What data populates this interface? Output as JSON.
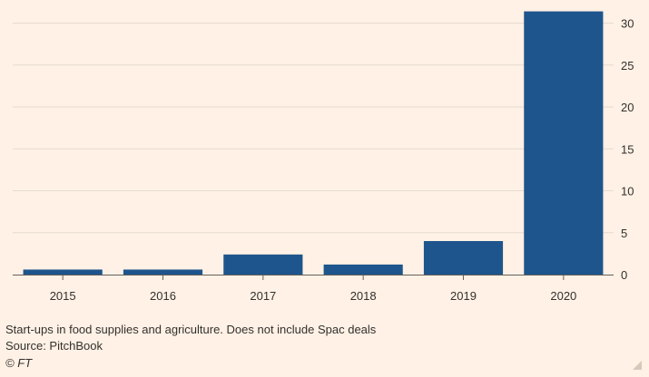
{
  "chart_data": {
    "type": "bar",
    "categories": [
      "2015",
      "2016",
      "2017",
      "2018",
      "2019",
      "2020"
    ],
    "values": [
      0.6,
      0.6,
      2.4,
      1.2,
      4.0,
      31.4
    ],
    "title": "",
    "xlabel": "",
    "ylabel": "",
    "ylim": [
      0,
      32
    ],
    "yticks": [
      0,
      5,
      10,
      15,
      20,
      25,
      30
    ],
    "y_axis_position": "right",
    "grid": true,
    "bar_color": "#1e558c",
    "grid_color": "#e6d9ce",
    "axis_color": "#66605c"
  },
  "footer": {
    "note": "Start-ups in food supplies and agriculture. Does not include Spac deals",
    "source": "Source: PitchBook",
    "copyright": "© FT"
  }
}
